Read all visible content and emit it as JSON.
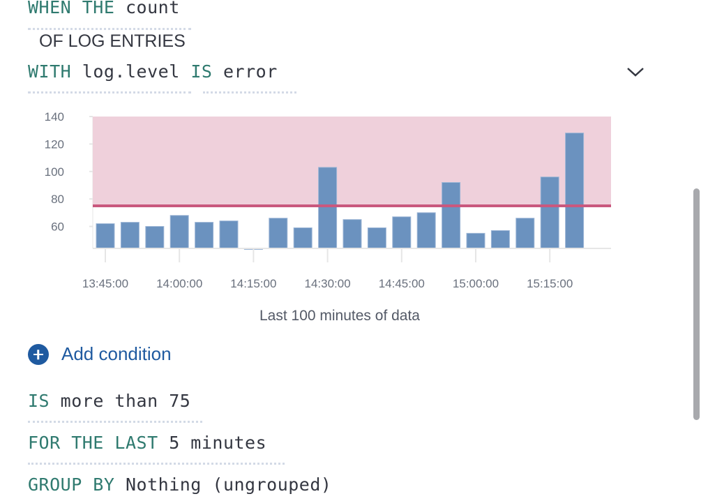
{
  "condition": {
    "when_kw": "WHEN THE",
    "aggregation": "count",
    "of_label": "OF LOG ENTRIES",
    "with_kw": "WITH",
    "field": "log.level",
    "is_kw": "IS",
    "field_value": "error"
  },
  "chart_data": {
    "type": "bar",
    "x": [
      "13:45:00",
      "13:50:00",
      "13:55:00",
      "14:00:00",
      "14:05:00",
      "14:10:00",
      "14:15:00",
      "14:20:00",
      "14:25:00",
      "14:30:00",
      "14:35:00",
      "14:40:00",
      "14:45:00",
      "14:50:00",
      "14:55:00",
      "15:00:00",
      "15:05:00",
      "15:10:00",
      "15:15:00",
      "15:20:00"
    ],
    "values": [
      62,
      63,
      60,
      68,
      63,
      64,
      44,
      66,
      59,
      103,
      65,
      59,
      67,
      70,
      92,
      55,
      57,
      66,
      96,
      128
    ],
    "xticks": [
      "13:45:00",
      "14:00:00",
      "14:15:00",
      "14:30:00",
      "14:45:00",
      "15:00:00",
      "15:15:00"
    ],
    "yticks": [
      60,
      80,
      100,
      120,
      140
    ],
    "ylim": [
      44,
      140
    ],
    "threshold": 75,
    "xlabel": "Last 100 minutes of data",
    "bar_color": "#6b92bf",
    "threshold_color": "#c9587e",
    "threshold_area_color": "#efd0db",
    "grid": true
  },
  "add_condition": "Add condition",
  "threshold": {
    "is_kw": "IS",
    "comparator": "more than",
    "value": "75"
  },
  "window": {
    "kw": "FOR THE LAST",
    "value": "5 minutes"
  },
  "group": {
    "kw": "GROUP BY",
    "value": "Nothing (ungrouped)"
  }
}
